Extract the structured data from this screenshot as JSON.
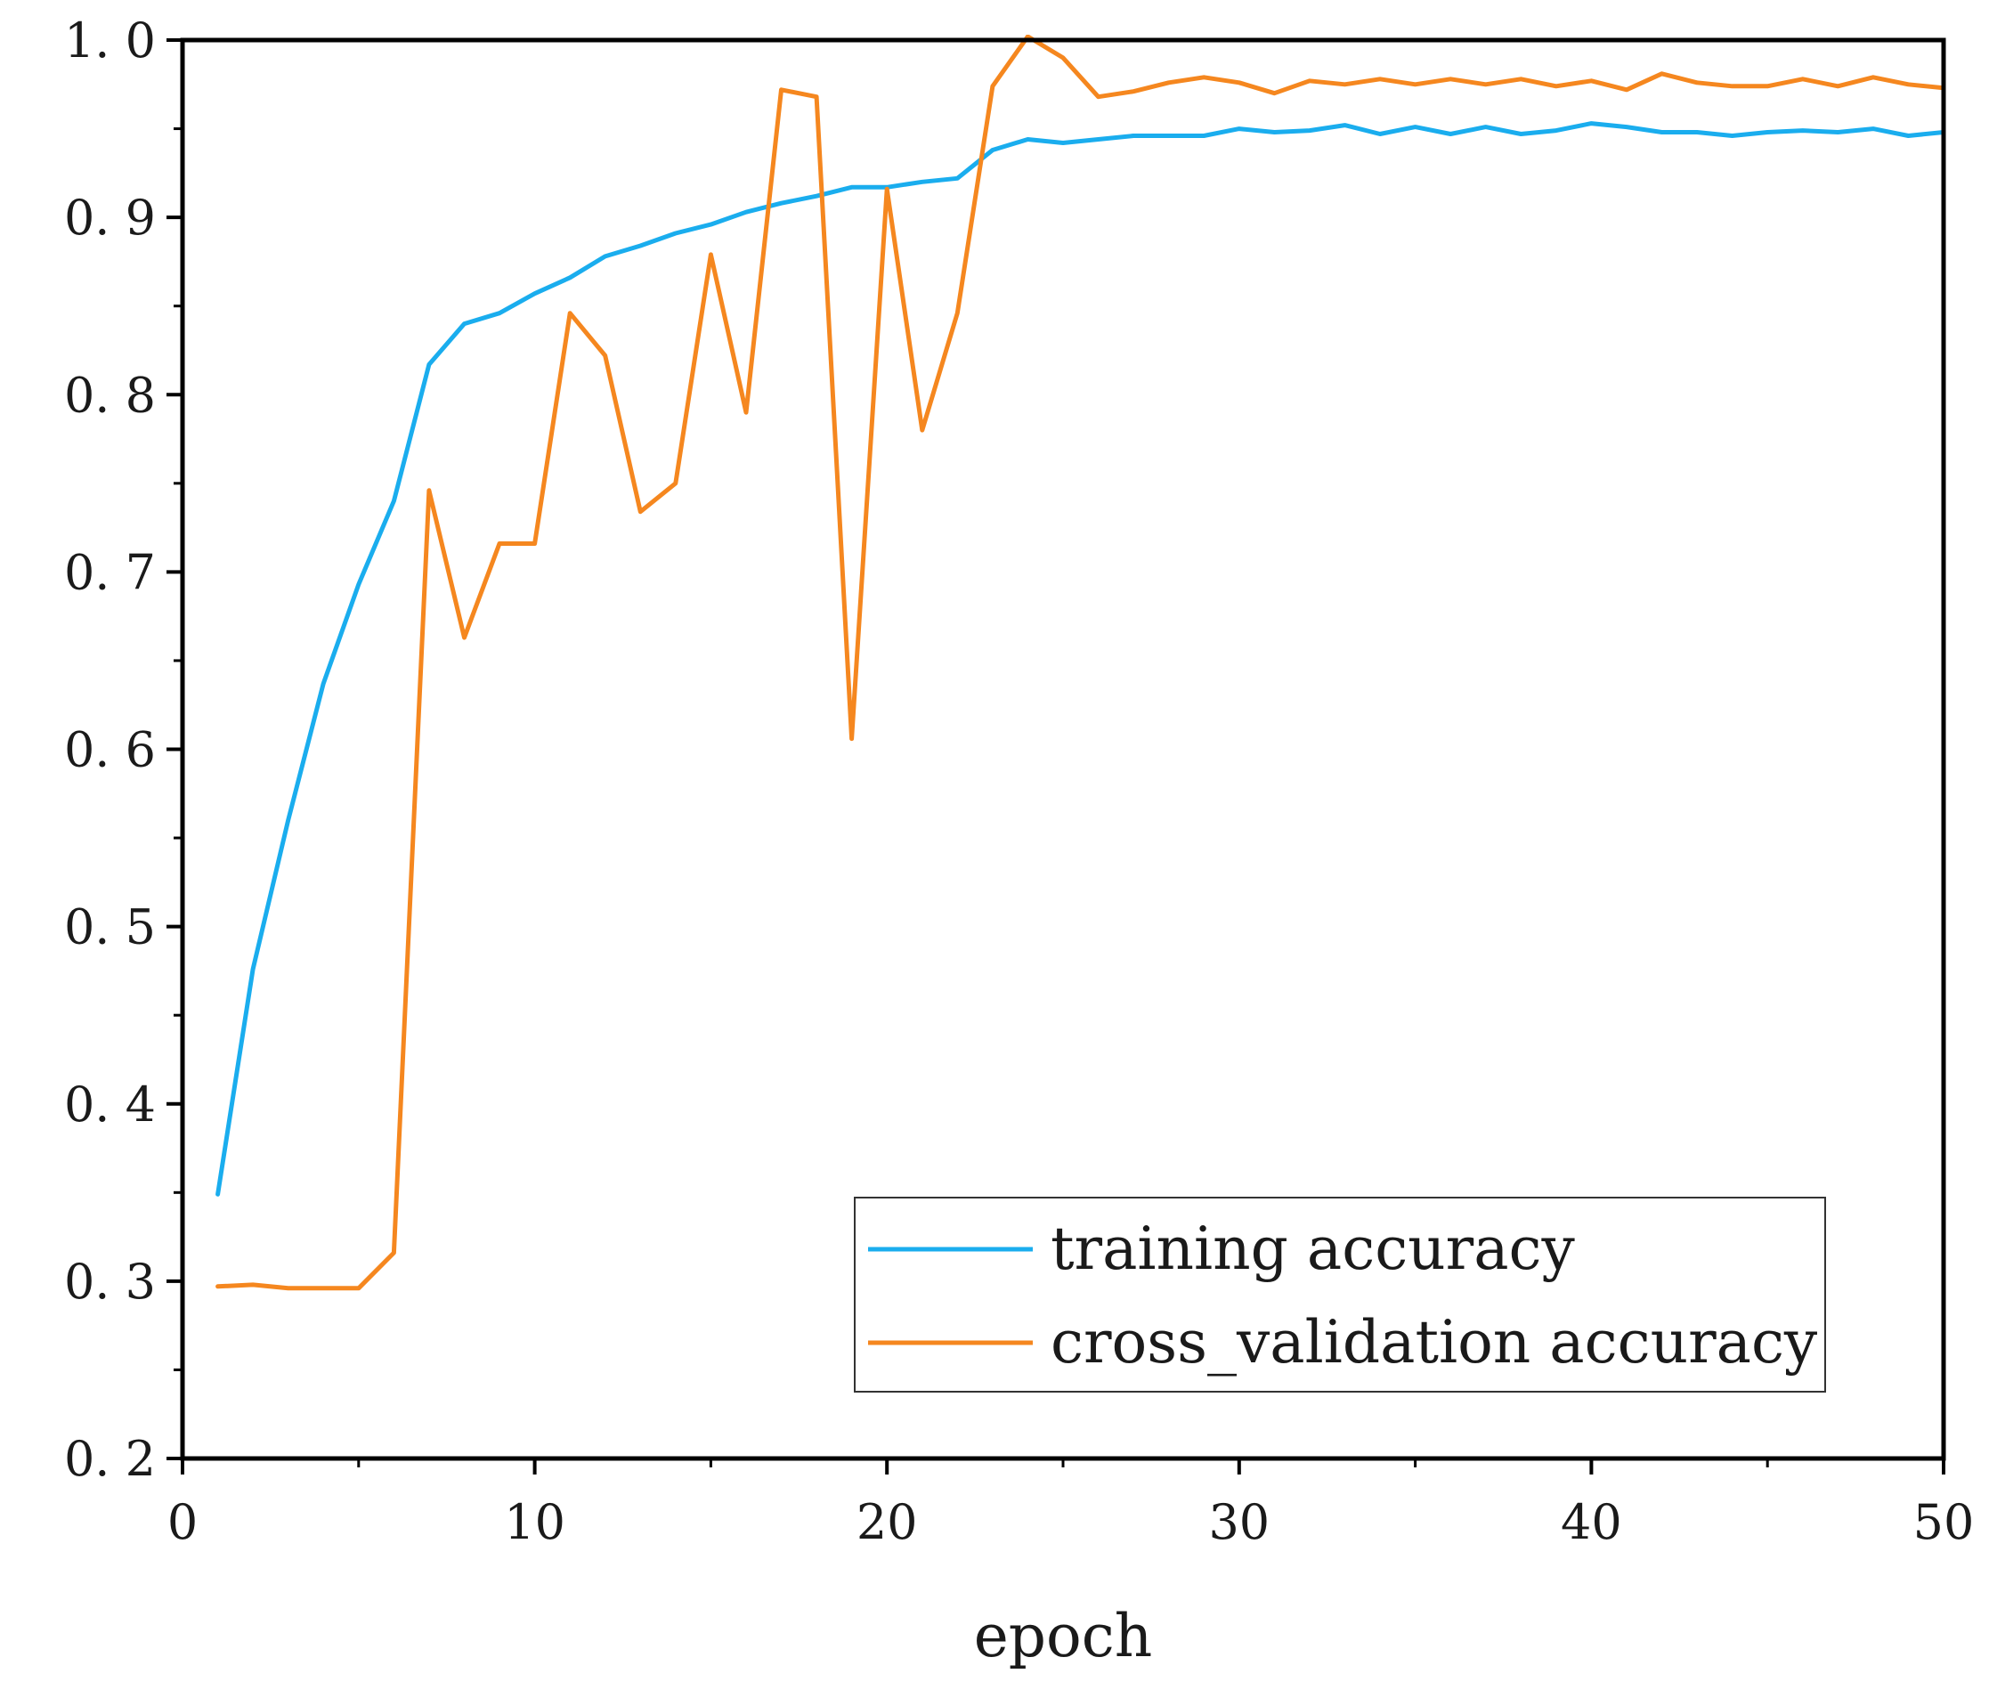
{
  "chart_data": {
    "type": "line",
    "title": "",
    "xlabel": "epoch",
    "ylabel": "",
    "xlim": [
      0,
      50
    ],
    "ylim": [
      0.2,
      1.0
    ],
    "xticks": [
      0,
      10,
      20,
      30,
      40,
      50
    ],
    "yticks": [
      0.2,
      0.3,
      0.4,
      0.5,
      0.6,
      0.7,
      0.8,
      0.9,
      1.0
    ],
    "xtick_labels": [
      "0",
      "10",
      "20",
      "30",
      "40",
      "50"
    ],
    "ytick_labels": [
      "0. 2",
      "0. 3",
      "0. 4",
      "0. 5",
      "0. 6",
      "0. 7",
      "0. 8",
      "0. 9",
      "1. 0"
    ],
    "grid": false,
    "legend_position": "bottom-right",
    "x": [
      1,
      2,
      3,
      4,
      5,
      6,
      7,
      8,
      9,
      10,
      11,
      12,
      13,
      14,
      15,
      16,
      17,
      18,
      19,
      20,
      21,
      22,
      23,
      24,
      25,
      26,
      27,
      28,
      29,
      30,
      31,
      32,
      33,
      34,
      35,
      36,
      37,
      38,
      39,
      40,
      41,
      42,
      43,
      44,
      45,
      46,
      47,
      48,
      49,
      50
    ],
    "series": [
      {
        "name": "training accuracy",
        "color": "#1AADEE",
        "values": [
          0.349,
          0.476,
          0.56,
          0.637,
          0.693,
          0.74,
          0.817,
          0.84,
          0.846,
          0.857,
          0.866,
          0.878,
          0.884,
          0.891,
          0.896,
          0.903,
          0.908,
          0.912,
          0.917,
          0.917,
          0.92,
          0.922,
          0.938,
          0.944,
          0.942,
          0.944,
          0.946,
          0.946,
          0.946,
          0.95,
          0.948,
          0.949,
          0.952,
          0.947,
          0.951,
          0.947,
          0.951,
          0.947,
          0.949,
          0.953,
          0.951,
          0.948,
          0.948,
          0.946,
          0.948,
          0.949,
          0.948,
          0.95,
          0.946,
          0.948
        ]
      },
      {
        "name": "cross_validation accuracy",
        "color": "#F5871F",
        "values": [
          0.297,
          0.298,
          0.296,
          0.296,
          0.296,
          0.316,
          0.746,
          0.663,
          0.716,
          0.716,
          0.846,
          0.822,
          0.734,
          0.75,
          0.879,
          0.79,
          0.972,
          0.968,
          0.606,
          0.916,
          0.78,
          0.846,
          0.974,
          1.002,
          0.99,
          0.968,
          0.971,
          0.976,
          0.979,
          0.976,
          0.97,
          0.977,
          0.975,
          0.978,
          0.975,
          0.978,
          0.975,
          0.978,
          0.974,
          0.977,
          0.972,
          0.981,
          0.976,
          0.974,
          0.974,
          0.978,
          0.974,
          0.979,
          0.975,
          0.973
        ]
      }
    ]
  }
}
